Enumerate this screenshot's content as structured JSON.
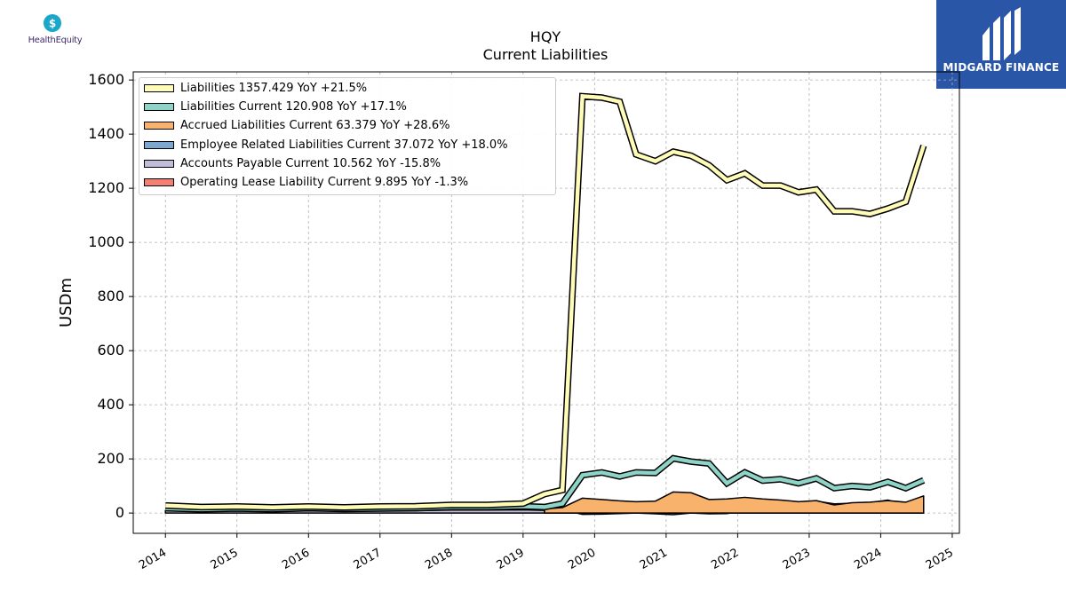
{
  "company_logo": {
    "icon": "dollar-drop-icon",
    "name": "HealthEquity",
    "color": "#1aa7c9"
  },
  "brand": {
    "name": "MIDGARD FINANCE",
    "icon": "midgard-m-logo-icon",
    "color": "#2a56a8"
  },
  "chart_data": {
    "type": "line",
    "title": "HQY",
    "subtitle": "Current  Liabilities",
    "ylabel": "USDm",
    "xlabel": "",
    "xlim": [
      2013.55,
      2025.1
    ],
    "ylim": [
      -75,
      1630
    ],
    "xticks": [
      2014,
      2015,
      2016,
      2017,
      2018,
      2019,
      2020,
      2021,
      2022,
      2023,
      2024,
      2025
    ],
    "yticks": [
      0,
      200,
      400,
      600,
      800,
      1000,
      1200,
      1400,
      1600
    ],
    "grid": true,
    "legend_position": "top-left",
    "series": [
      {
        "name": "Liabilities",
        "legend": "Liabilities  1357.429 YoY +21.5%",
        "color": "#fffcb8",
        "line": true,
        "points": [
          [
            2014.0,
            28
          ],
          [
            2014.5,
            22
          ],
          [
            2015.0,
            24
          ],
          [
            2015.5,
            21
          ],
          [
            2016.0,
            24
          ],
          [
            2016.5,
            21
          ],
          [
            2017.0,
            24
          ],
          [
            2017.5,
            25
          ],
          [
            2018.0,
            30
          ],
          [
            2018.5,
            30
          ],
          [
            2019.0,
            35
          ],
          [
            2019.3,
            70
          ],
          [
            2019.55,
            85
          ],
          [
            2019.83,
            1540
          ],
          [
            2020.1,
            1535
          ],
          [
            2020.35,
            1520
          ],
          [
            2020.58,
            1325
          ],
          [
            2020.85,
            1300
          ],
          [
            2021.1,
            1335
          ],
          [
            2021.35,
            1320
          ],
          [
            2021.6,
            1285
          ],
          [
            2021.85,
            1230
          ],
          [
            2022.1,
            1255
          ],
          [
            2022.35,
            1210
          ],
          [
            2022.6,
            1210
          ],
          [
            2022.85,
            1185
          ],
          [
            2023.1,
            1195
          ],
          [
            2023.35,
            1115
          ],
          [
            2023.6,
            1115
          ],
          [
            2023.85,
            1105
          ],
          [
            2024.1,
            1125
          ],
          [
            2024.35,
            1150
          ],
          [
            2024.6,
            1357.429
          ]
        ]
      },
      {
        "name": "Liabilities Current",
        "legend": "Liabilities Current  120.908 YoY +17.1%",
        "color": "#8dd3c7",
        "line": true,
        "points": [
          [
            2014.0,
            18
          ],
          [
            2014.5,
            14
          ],
          [
            2015.0,
            17
          ],
          [
            2015.5,
            14
          ],
          [
            2016.0,
            18
          ],
          [
            2016.5,
            15
          ],
          [
            2017.0,
            17
          ],
          [
            2017.5,
            18
          ],
          [
            2018.0,
            22
          ],
          [
            2018.5,
            22
          ],
          [
            2019.0,
            25
          ],
          [
            2019.3,
            22
          ],
          [
            2019.55,
            35
          ],
          [
            2019.83,
            140
          ],
          [
            2020.1,
            150
          ],
          [
            2020.35,
            135
          ],
          [
            2020.58,
            150
          ],
          [
            2020.85,
            148
          ],
          [
            2021.1,
            202
          ],
          [
            2021.35,
            190
          ],
          [
            2021.6,
            183
          ],
          [
            2021.85,
            110
          ],
          [
            2022.1,
            150
          ],
          [
            2022.35,
            120
          ],
          [
            2022.6,
            125
          ],
          [
            2022.85,
            110
          ],
          [
            2023.1,
            128
          ],
          [
            2023.35,
            92
          ],
          [
            2023.6,
            100
          ],
          [
            2023.85,
            95
          ],
          [
            2024.1,
            115
          ],
          [
            2024.35,
            92
          ],
          [
            2024.6,
            120.908
          ]
        ]
      },
      {
        "name": "Accrued Liabilities Current",
        "legend": "Accrued Liabilities Current  63.379 YoY +28.6%",
        "color": "#f9b26c",
        "line": false,
        "points": [
          [
            2019.3,
            15
          ],
          [
            2019.55,
            20
          ],
          [
            2019.83,
            55
          ],
          [
            2020.1,
            50
          ],
          [
            2020.35,
            45
          ],
          [
            2020.58,
            42
          ],
          [
            2020.85,
            44
          ],
          [
            2021.1,
            78
          ],
          [
            2021.35,
            75
          ],
          [
            2021.6,
            50
          ],
          [
            2021.85,
            52
          ],
          [
            2022.1,
            58
          ],
          [
            2022.35,
            52
          ],
          [
            2022.6,
            48
          ],
          [
            2022.85,
            42
          ],
          [
            2023.1,
            46
          ],
          [
            2023.35,
            30
          ],
          [
            2023.6,
            38
          ],
          [
            2023.85,
            40
          ],
          [
            2024.1,
            46
          ],
          [
            2024.35,
            40
          ],
          [
            2024.6,
            63.379
          ]
        ]
      },
      {
        "name": "Employee Related Liabilities Current",
        "legend": "Employee Related Liabilities Current  37.072 YoY +18.0%",
        "color": "#7ba7d1",
        "line": false,
        "points": [
          [
            2019.3,
            10
          ],
          [
            2019.55,
            15
          ],
          [
            2019.83,
            40
          ],
          [
            2020.1,
            48
          ],
          [
            2020.35,
            32
          ],
          [
            2020.58,
            38
          ],
          [
            2020.85,
            36
          ],
          [
            2021.1,
            48
          ],
          [
            2021.35,
            38
          ],
          [
            2021.6,
            42
          ],
          [
            2021.85,
            40
          ],
          [
            2022.1,
            44
          ],
          [
            2022.35,
            38
          ],
          [
            2022.6,
            40
          ],
          [
            2022.85,
            38
          ],
          [
            2023.1,
            44
          ],
          [
            2023.35,
            34
          ],
          [
            2023.6,
            36
          ],
          [
            2023.85,
            38
          ],
          [
            2024.1,
            48
          ],
          [
            2024.35,
            30
          ],
          [
            2024.6,
            37.072
          ]
        ]
      },
      {
        "name": "Accounts Payable Current",
        "legend": "Accounts Payable Current  10.562 YoY -15.8%",
        "color": "#c0bcda",
        "line": false,
        "points": [
          [
            2014.0,
            10
          ],
          [
            2014.5,
            8
          ],
          [
            2015.0,
            9
          ],
          [
            2015.5,
            8
          ],
          [
            2016.0,
            10
          ],
          [
            2016.5,
            9
          ],
          [
            2017.0,
            10
          ],
          [
            2017.5,
            9
          ],
          [
            2018.0,
            11
          ],
          [
            2018.5,
            11
          ],
          [
            2019.0,
            12
          ],
          [
            2019.3,
            10
          ],
          [
            2019.55,
            12
          ],
          [
            2019.83,
            -5
          ],
          [
            2020.1,
            -4
          ],
          [
            2020.35,
            -2
          ],
          [
            2020.58,
            0
          ],
          [
            2020.85,
            -3
          ],
          [
            2021.1,
            -6
          ],
          [
            2021.35,
            0
          ],
          [
            2021.6,
            -3
          ],
          [
            2021.85,
            -2
          ],
          [
            2022.1,
            10
          ],
          [
            2022.35,
            6
          ],
          [
            2022.6,
            8
          ],
          [
            2022.85,
            10
          ],
          [
            2023.1,
            12
          ],
          [
            2023.35,
            8
          ],
          [
            2023.6,
            10
          ],
          [
            2023.85,
            9
          ],
          [
            2024.1,
            14
          ],
          [
            2024.35,
            11
          ],
          [
            2024.6,
            10.562
          ]
        ]
      },
      {
        "name": "Operating Lease Liability Current",
        "legend": "Operating Lease Liability Current  9.895 YoY -1.3%",
        "color": "#f47f72",
        "line": false,
        "points": [
          [
            2019.55,
            12
          ],
          [
            2019.83,
            14
          ],
          [
            2020.1,
            14
          ],
          [
            2020.35,
            14
          ],
          [
            2020.58,
            14
          ],
          [
            2020.85,
            14
          ],
          [
            2021.1,
            14
          ],
          [
            2021.35,
            13
          ],
          [
            2021.6,
            13
          ],
          [
            2021.85,
            13
          ],
          [
            2022.1,
            13
          ],
          [
            2022.35,
            12
          ],
          [
            2022.6,
            12
          ],
          [
            2022.85,
            12
          ],
          [
            2023.1,
            11
          ],
          [
            2023.35,
            11
          ],
          [
            2023.6,
            11
          ],
          [
            2023.85,
            10
          ],
          [
            2024.1,
            10
          ],
          [
            2024.35,
            10
          ],
          [
            2024.6,
            9.895
          ]
        ]
      }
    ]
  }
}
